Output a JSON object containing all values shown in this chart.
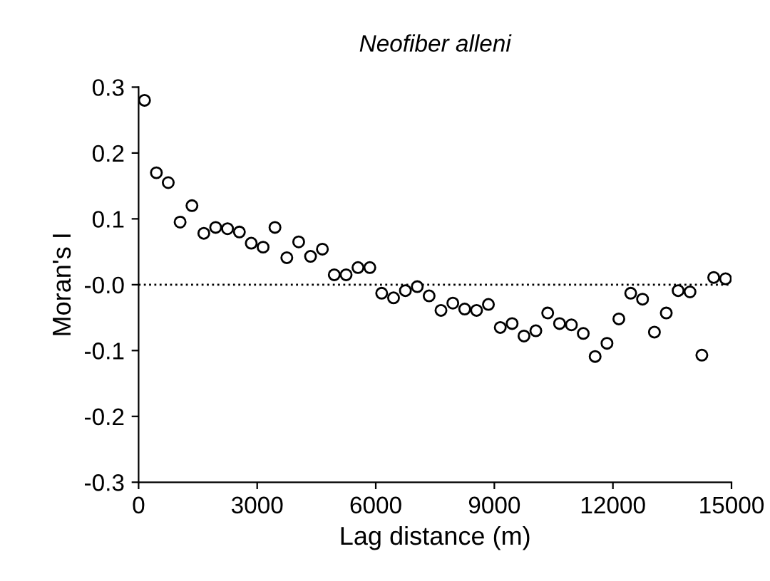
{
  "chart_data": {
    "type": "scatter",
    "title": "Neofiber alleni",
    "xlabel": "Lag distance (m)",
    "ylabel": "Moran's I",
    "x": [
      150,
      450,
      750,
      1050,
      1350,
      1650,
      1950,
      2250,
      2550,
      2850,
      3150,
      3450,
      3750,
      4050,
      4350,
      4650,
      4950,
      5250,
      5550,
      5850,
      6150,
      6450,
      6750,
      7050,
      7350,
      7650,
      7950,
      8250,
      8550,
      8850,
      9150,
      9450,
      9750,
      10050,
      10350,
      10650,
      10950,
      11250,
      11550,
      11850,
      12150,
      12450,
      12750,
      13050,
      13350,
      13650,
      13950,
      14250,
      14550,
      14850
    ],
    "series": [
      {
        "color": "#000000",
        "values": [
          0.28,
          0.17,
          0.155,
          0.095,
          0.12,
          0.078,
          0.087,
          0.085,
          0.08,
          0.063,
          0.057,
          0.087,
          0.041,
          0.065,
          0.043,
          0.054,
          0.015,
          0.015,
          0.026,
          0.026,
          -0.013,
          -0.02,
          -0.009,
          -0.003,
          -0.017,
          -0.039,
          -0.028,
          -0.037,
          -0.039,
          -0.03,
          -0.065,
          -0.059,
          -0.078,
          -0.07,
          -0.043,
          -0.059,
          -0.061,
          -0.074,
          -0.109,
          -0.089,
          -0.052,
          -0.013,
          -0.022,
          -0.072,
          -0.043,
          -0.009,
          -0.011,
          -0.107,
          0.011,
          0.009
        ]
      }
    ],
    "marker": "circle",
    "xlim": [
      0,
      15000
    ],
    "ylim": [
      -0.3,
      0.3
    ],
    "xticks": [
      0,
      3000,
      6000,
      9000,
      12000,
      15000
    ],
    "yticks": [
      {
        "value": 0.3,
        "label": "0.3"
      },
      {
        "value": 0.2,
        "label": "0.2"
      },
      {
        "value": 0.1,
        "label": "0.1"
      },
      {
        "value": 0,
        "label": "-0.0"
      },
      {
        "value": -0.1,
        "label": "-0.1"
      },
      {
        "value": -0.2,
        "label": "-0.2"
      },
      {
        "value": -0.3,
        "label": "-0.3"
      }
    ],
    "ref_lines": [
      {
        "axis": "y",
        "value": 0,
        "line_style": "dotted",
        "color": "#000000"
      }
    ],
    "grid": false,
    "legend": false
  }
}
